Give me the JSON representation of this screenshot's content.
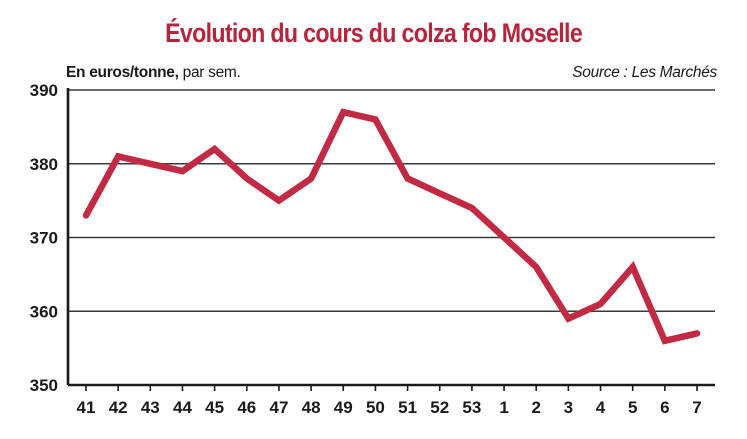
{
  "chart_data": {
    "type": "line",
    "title": "Évolution du cours du colza fob Moselle",
    "unit_label_bold": "En euros/tonne,",
    "unit_label_rest": " par sem.",
    "source": "Source : Les Marchés",
    "xlabel": "",
    "ylabel": "",
    "categories": [
      "41",
      "42",
      "43",
      "44",
      "45",
      "46",
      "47",
      "48",
      "49",
      "50",
      "51",
      "52",
      "53",
      "1",
      "2",
      "3",
      "4",
      "5",
      "6",
      "7"
    ],
    "series": [
      {
        "values": [
          373,
          381,
          380,
          379,
          382,
          378,
          375,
          378,
          387,
          386,
          378,
          376,
          374,
          370,
          366,
          359,
          361,
          366,
          356,
          357
        ]
      }
    ],
    "ylim": [
      350,
      390
    ],
    "yticks": [
      350,
      360,
      370,
      380,
      390
    ],
    "grid": true,
    "line_color": "#c22a44",
    "title_color": "#b5263d",
    "legend": "none"
  }
}
